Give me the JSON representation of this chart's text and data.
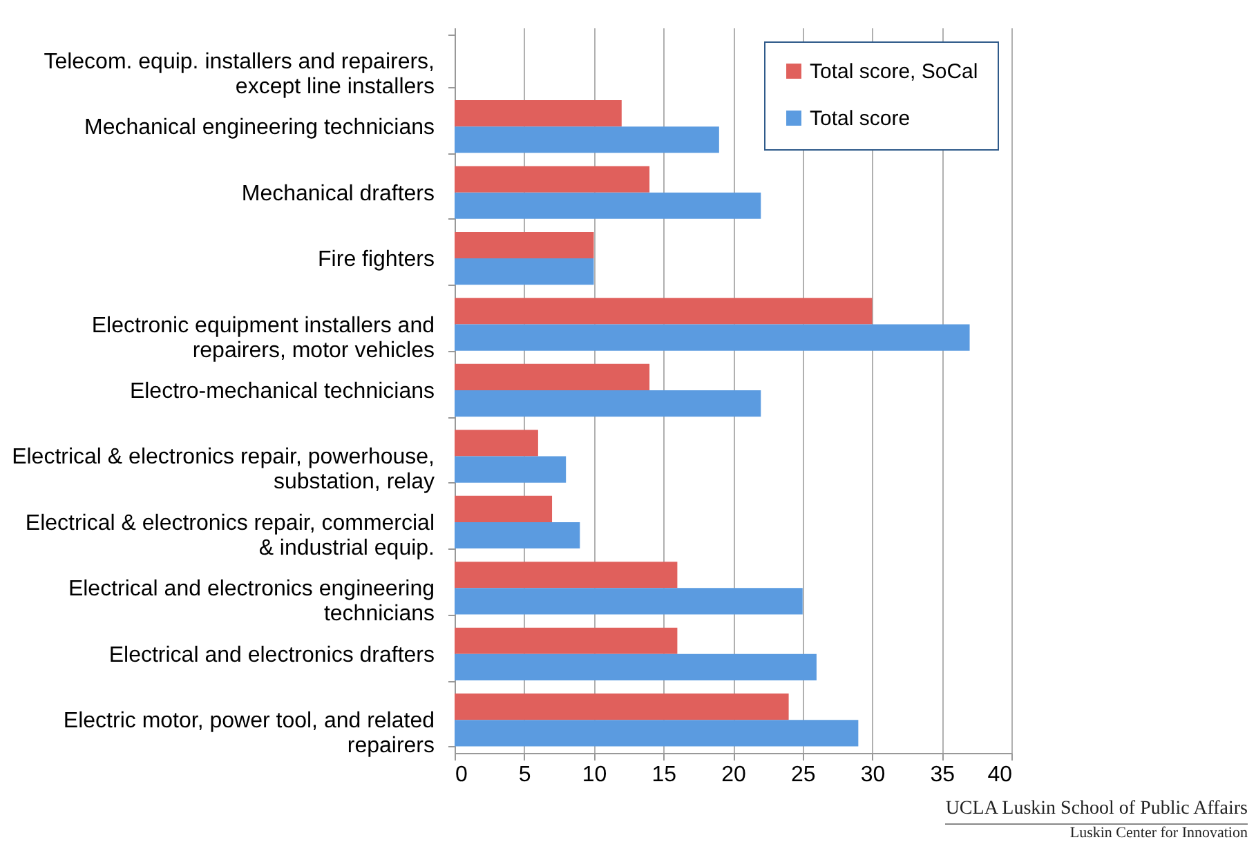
{
  "chart_data": {
    "type": "bar",
    "orientation": "horizontal",
    "categories": [
      "Telecom. equip. installers and repairers, except line installers",
      "Mechanical engineering technicians",
      "Mechanical drafters",
      "Fire fighters",
      "Electronic equipment installers and repairers, motor vehicles",
      "Electro-mechanical technicians",
      "Electrical & electronics repair, powerhouse, substation, relay",
      "Electrical & electronics repair, commercial & industrial equip.",
      "Electrical and electronics engineering technicians",
      "Electrical and electronics drafters",
      "Electric motor, power tool, and related repairers"
    ],
    "series": [
      {
        "name": "Total score, SoCal",
        "color": "#e0605c",
        "values": [
          0,
          12,
          14,
          10,
          30,
          14,
          6,
          7,
          16,
          16,
          24
        ]
      },
      {
        "name": "Total score",
        "color": "#5b9be0",
        "values": [
          0,
          19,
          22,
          10,
          37,
          22,
          8,
          9,
          25,
          26,
          29
        ]
      }
    ],
    "xlim": [
      0,
      40
    ],
    "xticks": [
      0,
      5,
      10,
      15,
      20,
      25,
      30,
      35,
      40
    ],
    "grid": "x",
    "legend": "top right",
    "annotations": [
      "UCLA Luskin School of Public Affairs",
      "Luskin Center for Innovation"
    ]
  }
}
